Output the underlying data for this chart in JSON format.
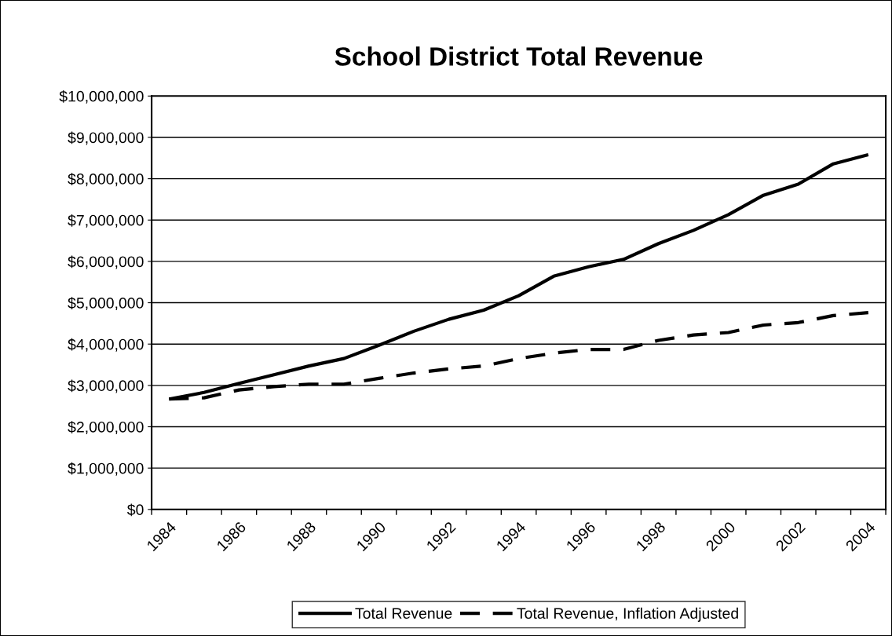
{
  "chart_data": {
    "type": "line",
    "title": "School District Total Revenue",
    "categories": [
      "1984",
      null,
      "1986",
      null,
      "1988",
      null,
      "1990",
      null,
      "1992",
      null,
      "1994",
      null,
      "1996",
      null,
      "1998",
      null,
      "2000",
      null,
      "2002",
      null,
      "2004"
    ],
    "series": [
      {
        "name": "Total Revenue",
        "color": "#000000",
        "line_style": "solid",
        "values": [
          2670000,
          2830000,
          3050000,
          3260000,
          3470000,
          3650000,
          3970000,
          4310000,
          4600000,
          4820000,
          5170000,
          5640000,
          5870000,
          6050000,
          6430000,
          6750000,
          7130000,
          7600000,
          7870000,
          8360000,
          8580000
        ]
      },
      {
        "name": "Total Revenue, Inflation Adjusted",
        "color": "#000000",
        "line_style": "dashed",
        "values": [
          2670000,
          2700000,
          2890000,
          2970000,
          3030000,
          3030000,
          3170000,
          3300000,
          3400000,
          3470000,
          3650000,
          3780000,
          3870000,
          3870000,
          4090000,
          4220000,
          4280000,
          4460000,
          4520000,
          4690000,
          4760000
        ]
      }
    ],
    "ylim": [
      0,
      10000000
    ],
    "yticks": [
      {
        "value": 0,
        "label": "$0"
      },
      {
        "value": 1000000,
        "label": "$1,000,000"
      },
      {
        "value": 2000000,
        "label": "$2,000,000"
      },
      {
        "value": 3000000,
        "label": "$3,000,000"
      },
      {
        "value": 4000000,
        "label": "$4,000,000"
      },
      {
        "value": 5000000,
        "label": "$5,000,000"
      },
      {
        "value": 6000000,
        "label": "$6,000,000"
      },
      {
        "value": 7000000,
        "label": "$7,000,000"
      },
      {
        "value": 8000000,
        "label": "$8,000,000"
      },
      {
        "value": 9000000,
        "label": "$9,000,000"
      },
      {
        "value": 10000000,
        "label": "$10,000,000"
      }
    ],
    "grid": "y",
    "legend": "bottom",
    "marker": "none"
  }
}
